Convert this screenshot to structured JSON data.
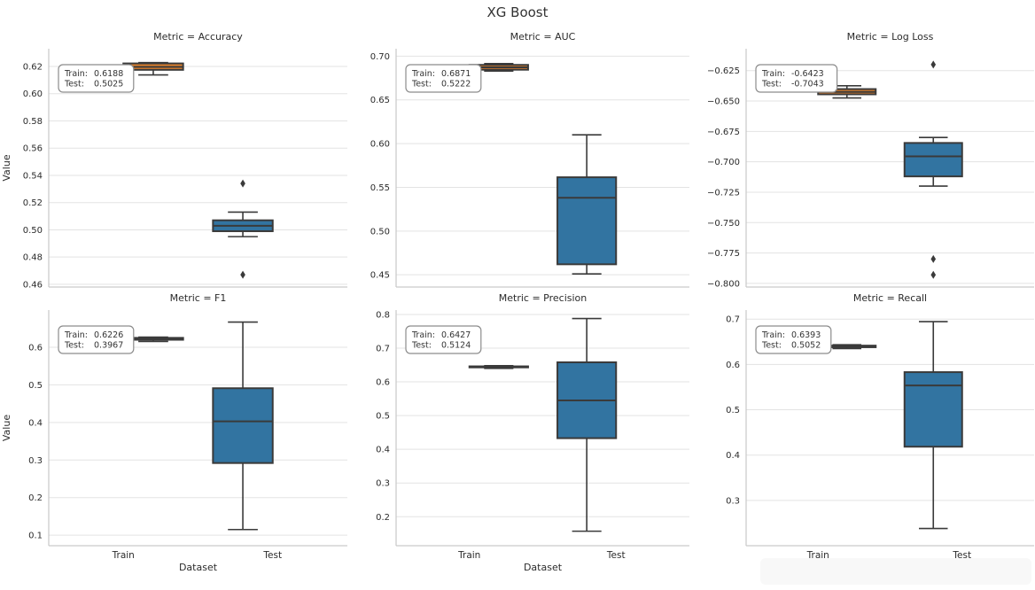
{
  "figure_title": "XG Boost",
  "ylabel": "Value",
  "xlabel": "Dataset",
  "categories": [
    "Train",
    "Test"
  ],
  "colors": {
    "train_box": "#E1812C",
    "test_box": "#3274A1",
    "box_line": "#3A3A3A",
    "flier": "#3A3A3A",
    "grid": "#E3E3E3",
    "spine": "#C9C9C9",
    "text_dark": "#2B2B2B",
    "annotation_border": "#8C8C8C",
    "background": "#FFFFFF"
  },
  "chart_data": [
    {
      "type": "boxplot",
      "title": "Metric = Accuracy",
      "row": 0,
      "col": 0,
      "ylim": [
        0.458,
        0.633
      ],
      "yticks": [
        0.46,
        0.48,
        0.5,
        0.52,
        0.54,
        0.56,
        0.58,
        0.6,
        0.62
      ],
      "ytick_labels": [
        "0.46",
        "0.48",
        "0.50",
        "0.52",
        "0.54",
        "0.56",
        "0.58",
        "0.60",
        "0.62"
      ],
      "annotation": {
        "train_label": "Train:",
        "train_value": "0.6188",
        "test_label": "Test:",
        "test_value": "0.5025"
      },
      "series": [
        {
          "name": "Train",
          "color_key": "train_box",
          "whislo": 0.6138,
          "q1": 0.6175,
          "med": 0.6197,
          "q3": 0.6222,
          "whishi": 0.6228,
          "fliers": []
        },
        {
          "name": "Test",
          "color_key": "test_box",
          "whislo": 0.495,
          "q1": 0.499,
          "med": 0.503,
          "q3": 0.507,
          "whishi": 0.513,
          "fliers": [
            0.534,
            0.467
          ]
        }
      ],
      "show_xlabel": false
    },
    {
      "type": "boxplot",
      "title": "Metric = AUC",
      "row": 0,
      "col": 1,
      "ylim": [
        0.436,
        0.7085
      ],
      "yticks": [
        0.45,
        0.5,
        0.55,
        0.6,
        0.65,
        0.7
      ],
      "ytick_labels": [
        "0.45",
        "0.50",
        "0.55",
        "0.60",
        "0.65",
        "0.70"
      ],
      "annotation": {
        "train_label": "Train:",
        "train_value": "0.6871",
        "test_label": "Test:",
        "test_value": "0.5222"
      },
      "series": [
        {
          "name": "Train",
          "color_key": "train_box",
          "whislo": 0.683,
          "q1": 0.6845,
          "med": 0.6872,
          "q3": 0.69,
          "whishi": 0.6915,
          "fliers": []
        },
        {
          "name": "Test",
          "color_key": "test_box",
          "whislo": 0.451,
          "q1": 0.462,
          "med": 0.538,
          "q3": 0.5615,
          "whishi": 0.61,
          "fliers": []
        }
      ],
      "show_xlabel": false
    },
    {
      "type": "boxplot",
      "title": "Metric = Log Loss",
      "row": 0,
      "col": 2,
      "ylim": [
        -0.803,
        -0.607
      ],
      "yticks": [
        -0.8,
        -0.775,
        -0.75,
        -0.725,
        -0.7,
        -0.675,
        -0.65,
        -0.625
      ],
      "ytick_labels": [
        "−0.800",
        "−0.775",
        "−0.750",
        "−0.725",
        "−0.700",
        "−0.675",
        "−0.650",
        "−0.625"
      ],
      "annotation": {
        "train_label": "Train:",
        "train_value": "-0.6423",
        "test_label": "Test:",
        "test_value": "-0.7043"
      },
      "series": [
        {
          "name": "Train",
          "color_key": "train_box",
          "whislo": -0.6475,
          "q1": -0.6445,
          "med": -0.6425,
          "q3": -0.6402,
          "whishi": -0.6375,
          "fliers": []
        },
        {
          "name": "Test",
          "color_key": "test_box",
          "whislo": -0.72,
          "q1": -0.712,
          "med": -0.6955,
          "q3": -0.6845,
          "whishi": -0.68,
          "fliers": [
            -0.62,
            -0.78,
            -0.793
          ]
        }
      ],
      "show_xlabel": false
    },
    {
      "type": "boxplot",
      "title": "Metric = F1",
      "row": 1,
      "col": 0,
      "ylim": [
        0.072,
        0.699
      ],
      "yticks": [
        0.1,
        0.2,
        0.3,
        0.4,
        0.5,
        0.6
      ],
      "ytick_labels": [
        "0.1",
        "0.2",
        "0.3",
        "0.4",
        "0.5",
        "0.6"
      ],
      "annotation": {
        "train_label": "Train:",
        "train_value": "0.6226",
        "test_label": "Test:",
        "test_value": "0.3967"
      },
      "series": [
        {
          "name": "Train",
          "color_key": "train_box",
          "whislo": 0.6155,
          "q1": 0.62,
          "med": 0.6226,
          "q3": 0.625,
          "whishi": 0.627,
          "fliers": []
        },
        {
          "name": "Test",
          "color_key": "test_box",
          "whislo": 0.115,
          "q1": 0.292,
          "med": 0.403,
          "q3": 0.491,
          "whishi": 0.667,
          "fliers": []
        }
      ],
      "show_xlabel": true
    },
    {
      "type": "boxplot",
      "title": "Metric = Precision",
      "row": 1,
      "col": 1,
      "ylim": [
        0.114,
        0.813
      ],
      "yticks": [
        0.2,
        0.3,
        0.4,
        0.5,
        0.6,
        0.7,
        0.8
      ],
      "ytick_labels": [
        "0.2",
        "0.3",
        "0.4",
        "0.5",
        "0.6",
        "0.7",
        "0.8"
      ],
      "annotation": {
        "train_label": "Train:",
        "train_value": "0.6427",
        "test_label": "Test:",
        "test_value": "0.5124"
      },
      "series": [
        {
          "name": "Train",
          "color_key": "train_box",
          "whislo": 0.64,
          "q1": 0.643,
          "med": 0.6445,
          "q3": 0.646,
          "whishi": 0.648,
          "fliers": []
        },
        {
          "name": "Test",
          "color_key": "test_box",
          "whislo": 0.157,
          "q1": 0.433,
          "med": 0.545,
          "q3": 0.658,
          "whishi": 0.788,
          "fliers": []
        }
      ],
      "show_xlabel": true
    },
    {
      "type": "boxplot",
      "title": "Metric = Recall",
      "row": 1,
      "col": 2,
      "ylim": [
        0.2,
        0.72
      ],
      "yticks": [
        0.3,
        0.4,
        0.5,
        0.6,
        0.7
      ],
      "ytick_labels": [
        "0.3",
        "0.4",
        "0.5",
        "0.6",
        "0.7"
      ],
      "annotation": {
        "train_label": "Train:",
        "train_value": "0.6393",
        "test_label": "Test:",
        "test_value": "0.5052"
      },
      "series": [
        {
          "name": "Train",
          "color_key": "train_box",
          "whislo": 0.635,
          "q1": 0.638,
          "med": 0.64,
          "q3": 0.6415,
          "whishi": 0.6435,
          "fliers": []
        },
        {
          "name": "Test",
          "color_key": "test_box",
          "whislo": 0.238,
          "q1": 0.4185,
          "med": 0.5535,
          "q3": 0.583,
          "whishi": 0.6945,
          "fliers": []
        }
      ],
      "show_xlabel": false
    }
  ]
}
